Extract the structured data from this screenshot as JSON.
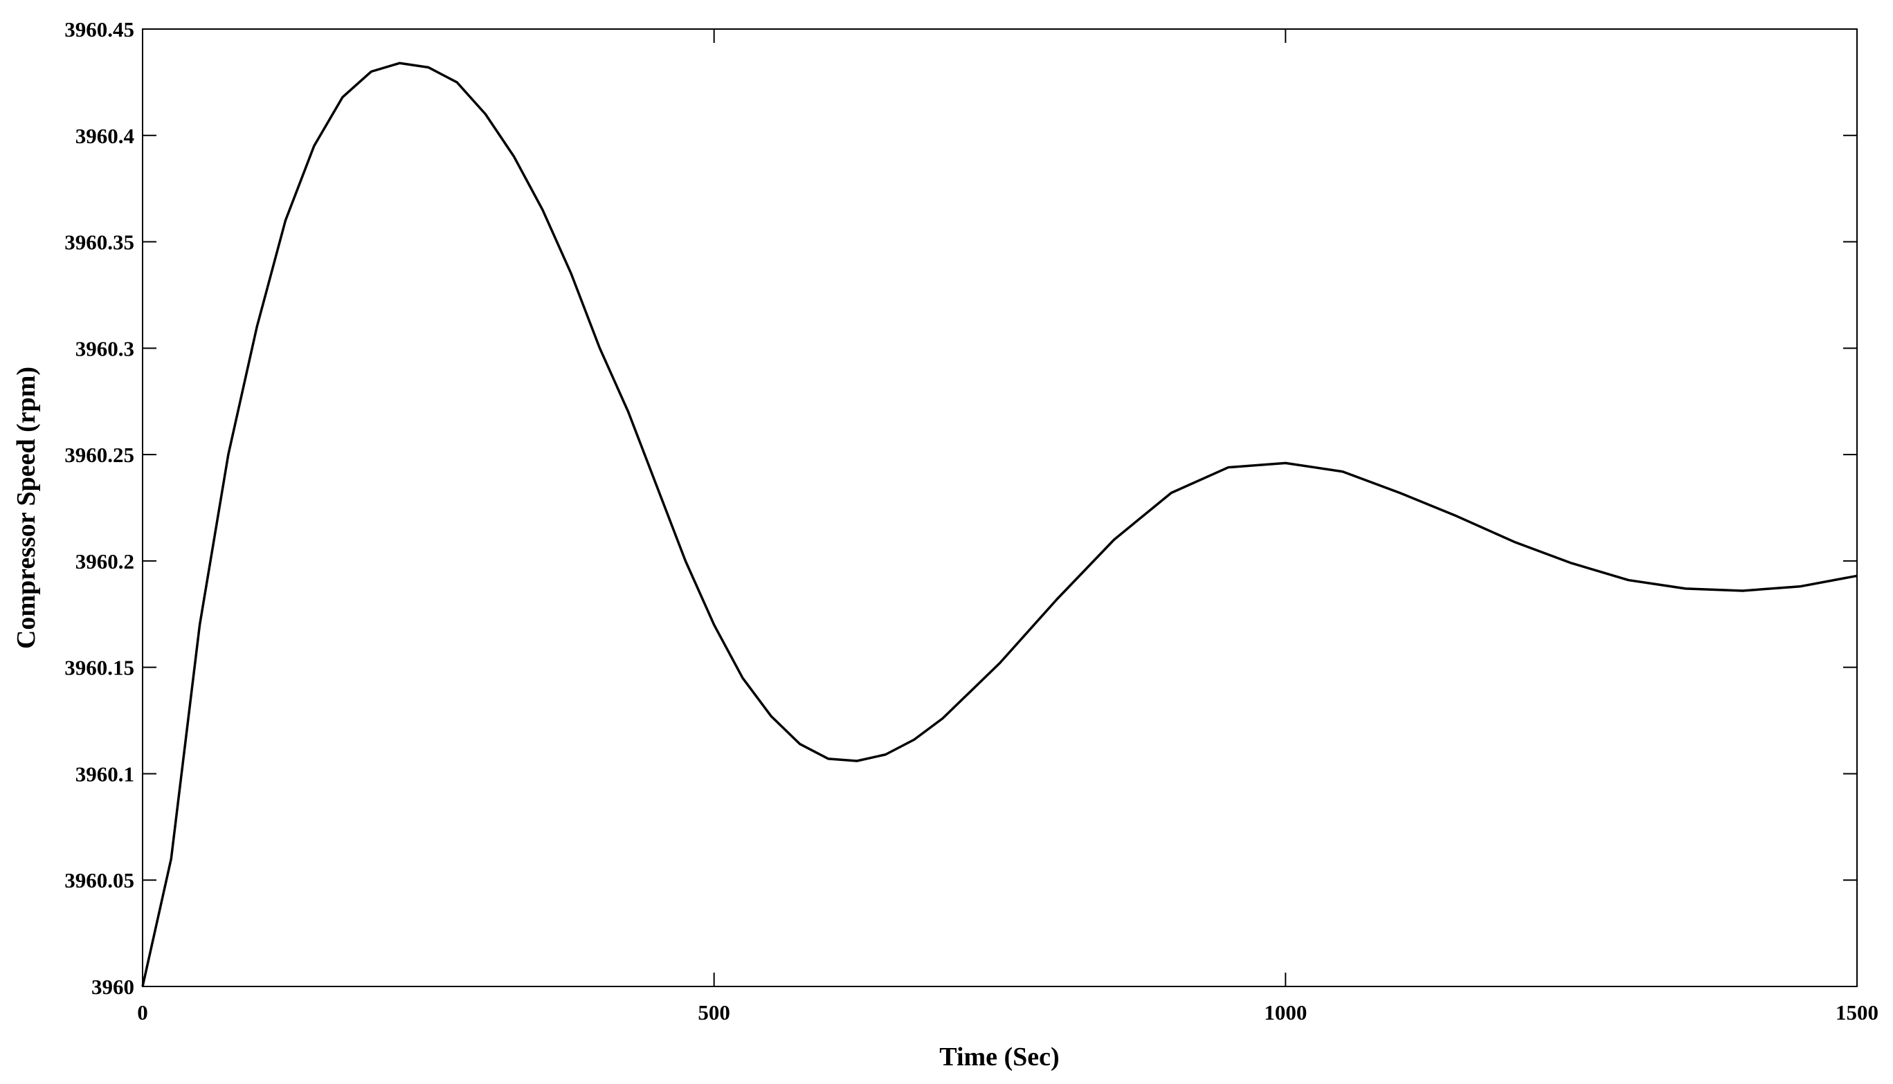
{
  "chart_data": {
    "type": "line",
    "xlabel": "Time (Sec)",
    "ylabel": "Compressor Speed (rpm)",
    "x": [
      0,
      25,
      50,
      75,
      100,
      125,
      150,
      175,
      200,
      225,
      250,
      275,
      300,
      325,
      350,
      375,
      400,
      425,
      450,
      475,
      500,
      525,
      550,
      575,
      600,
      625,
      650,
      675,
      700,
      750,
      800,
      850,
      900,
      950,
      1000,
      1050,
      1100,
      1150,
      1200,
      1250,
      1300,
      1350,
      1400,
      1450,
      1500
    ],
    "series": [
      {
        "color": "#000000",
        "values": [
          3960.0,
          3960.06,
          3960.17,
          3960.25,
          3960.31,
          3960.36,
          3960.395,
          3960.418,
          3960.43,
          3960.434,
          3960.432,
          3960.425,
          3960.41,
          3960.39,
          3960.365,
          3960.335,
          3960.3,
          3960.27,
          3960.235,
          3960.2,
          3960.17,
          3960.145,
          3960.127,
          3960.114,
          3960.107,
          3960.106,
          3960.109,
          3960.116,
          3960.126,
          3960.152,
          3960.182,
          3960.21,
          3960.232,
          3960.244,
          3960.246,
          3960.242,
          3960.232,
          3960.221,
          3960.209,
          3960.199,
          3960.191,
          3960.187,
          3960.186,
          3960.188,
          3960.193
        ]
      }
    ],
    "xlim": [
      0,
      1500
    ],
    "xticks": [
      0,
      500,
      1000,
      1500
    ],
    "ylim": [
      3960,
      3960.45
    ],
    "yticks": [
      3960,
      3960.05,
      3960.1,
      3960.15,
      3960.2,
      3960.25,
      3960.3,
      3960.35,
      3960.4,
      3960.45
    ],
    "grid": false
  }
}
